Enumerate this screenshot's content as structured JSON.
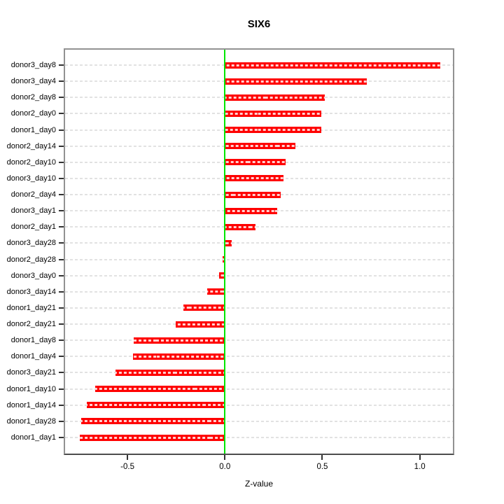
{
  "page": {
    "background": "#ffffff"
  },
  "chart_data": {
    "type": "bar",
    "orientation": "horizontal",
    "title": "SIX6",
    "xlabel": "Z-value",
    "ylabel": "",
    "xlim": [
      -0.82,
      1.17
    ],
    "xticks": [
      -0.5,
      0.0,
      0.5,
      1.0
    ],
    "xtick_labels": [
      "-0.5",
      "0.0",
      "0.5",
      "1.0"
    ],
    "grid": "per-category dashed horizontal lines, full plot width",
    "legend": "none",
    "colors": {
      "bar": "#ff0000",
      "zero_line": "#00e600",
      "grid": "#e2e2e2",
      "box": "#929292",
      "axis": "#4d4d4d",
      "text": "#000000"
    },
    "categories": [
      "donor3_day8",
      "donor3_day4",
      "donor2_day8",
      "donor2_day0",
      "donor1_day0",
      "donor2_day14",
      "donor2_day10",
      "donor3_day10",
      "donor2_day4",
      "donor3_day1",
      "donor2_day1",
      "donor3_day28",
      "donor2_day28",
      "donor3_day0",
      "donor3_day14",
      "donor1_day21",
      "donor2_day21",
      "donor1_day8",
      "donor1_day4",
      "donor3_day21",
      "donor1_day10",
      "donor1_day14",
      "donor1_day28",
      "donor1_day1"
    ],
    "values": [
      1.104,
      0.727,
      0.514,
      0.496,
      0.493,
      0.363,
      0.313,
      0.299,
      0.288,
      0.27,
      0.158,
      0.036,
      -0.01,
      -0.028,
      -0.092,
      -0.212,
      -0.252,
      -0.468,
      -0.472,
      -0.561,
      -0.665,
      -0.709,
      -0.737,
      -0.745
    ]
  }
}
